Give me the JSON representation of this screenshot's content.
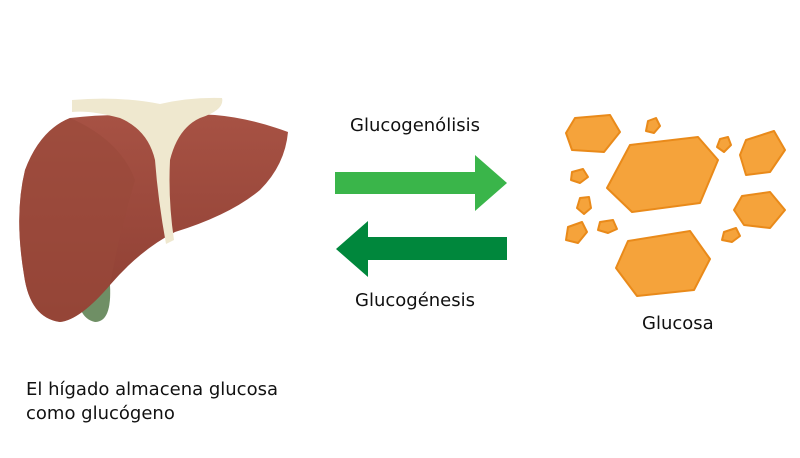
{
  "labels": {
    "glycogenolysis": "Glucogenólisis",
    "glycogenesis": "Glucogénesis",
    "glucose": "Glucosa",
    "caption_line1": "El hígado almacena glucosa",
    "caption_line2": "como glucógeno"
  },
  "icons": {
    "liver": "liver-icon",
    "glucose": "glucose-crystals-icon",
    "arrow_right": "arrow-right-icon",
    "arrow_left": "arrow-left-icon"
  },
  "colors": {
    "liver": "#9e4a3e",
    "liver_dark": "#7f3529",
    "ligament": "#efe8cf",
    "gallbladder": "#6f8f65",
    "arrow_light": "#3ab54a",
    "arrow_dark": "#00873c",
    "glucose": "#f5a33b",
    "glucose_edge": "#e98a1a"
  }
}
